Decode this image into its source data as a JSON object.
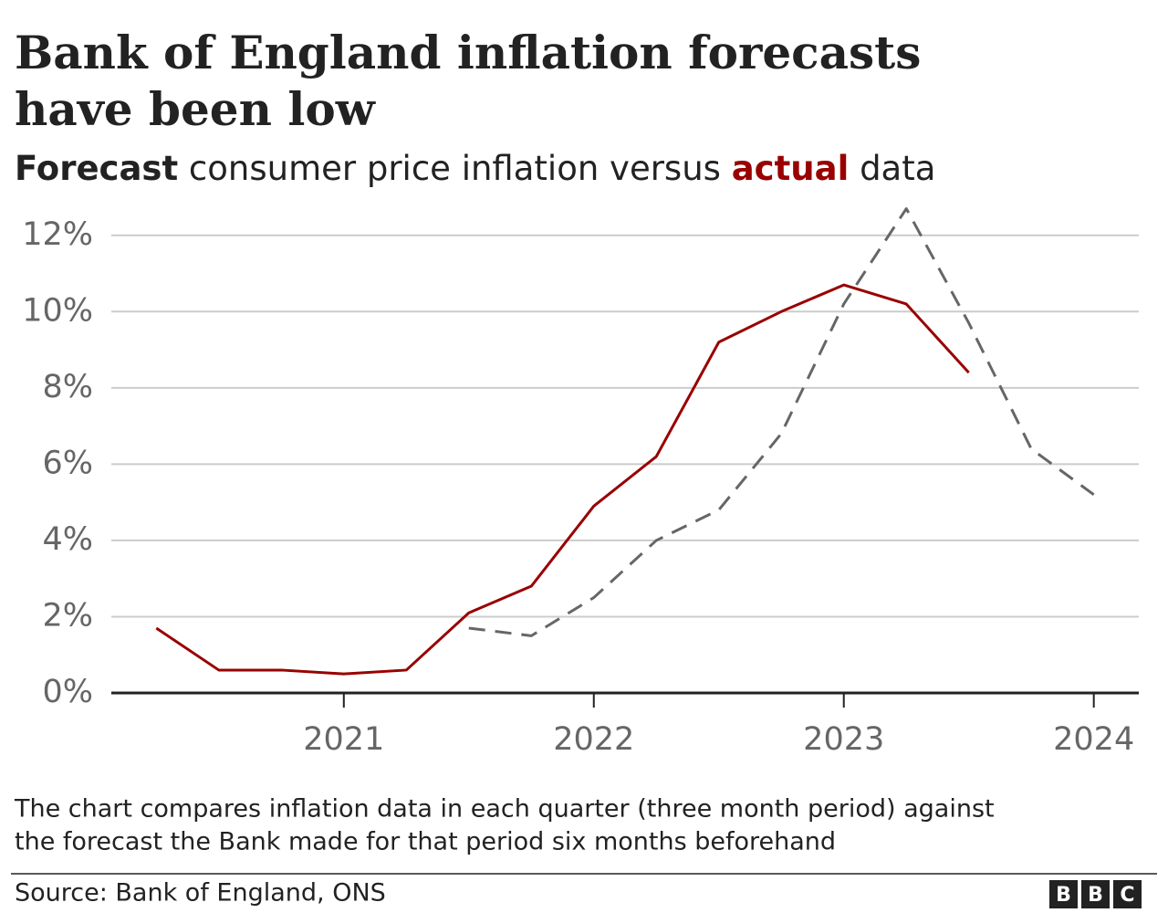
{
  "chart_data": {
    "type": "line",
    "title": [
      "Bank of England inflation forecasts",
      "have been low"
    ],
    "subtitle_text": [
      "consumer price inflation versus",
      "data"
    ],
    "x": [
      2020.25,
      2020.5,
      2020.75,
      2021,
      2021.25,
      2021.5,
      2021.75,
      2022,
      2022.25,
      2022.5,
      2022.75,
      2023,
      2023.25,
      2023.5,
      2023.75,
      2024
    ],
    "series": [
      {
        "name": "Forecast",
        "color": "#666666",
        "dashed": true,
        "values": [
          null,
          null,
          null,
          null,
          null,
          1.7,
          1.5,
          2.5,
          4.0,
          4.8,
          6.8,
          10.2,
          12.7,
          9.7,
          6.4,
          5.2
        ]
      },
      {
        "name": "actual",
        "color": "#990000",
        "dashed": false,
        "values": [
          1.7,
          0.6,
          0.6,
          0.5,
          0.6,
          2.1,
          2.8,
          4.9,
          6.2,
          9.2,
          10.0,
          10.7,
          10.2,
          8.4,
          null,
          null
        ]
      }
    ],
    "xlim": [
      2020.07,
      2024.18
    ],
    "xticks": [
      2021,
      2022,
      2023,
      2024
    ],
    "ylim": [
      0,
      13
    ],
    "yticks": [
      {
        "value": 0,
        "label": "0%"
      },
      {
        "value": 2,
        "label": "2%"
      },
      {
        "value": 4,
        "label": "4%"
      },
      {
        "value": 6,
        "label": "6%"
      },
      {
        "value": 8,
        "label": "8%"
      },
      {
        "value": 10,
        "label": "10%"
      },
      {
        "value": 12,
        "label": "12%"
      }
    ],
    "grid": true,
    "note": [
      "The chart compares inflation data in each quarter (three month period) against",
      "the forecast the Bank made for that period six months beforehand"
    ],
    "source": "Source: Bank of England, ONS",
    "logo": [
      "B",
      "B",
      "C"
    ]
  }
}
